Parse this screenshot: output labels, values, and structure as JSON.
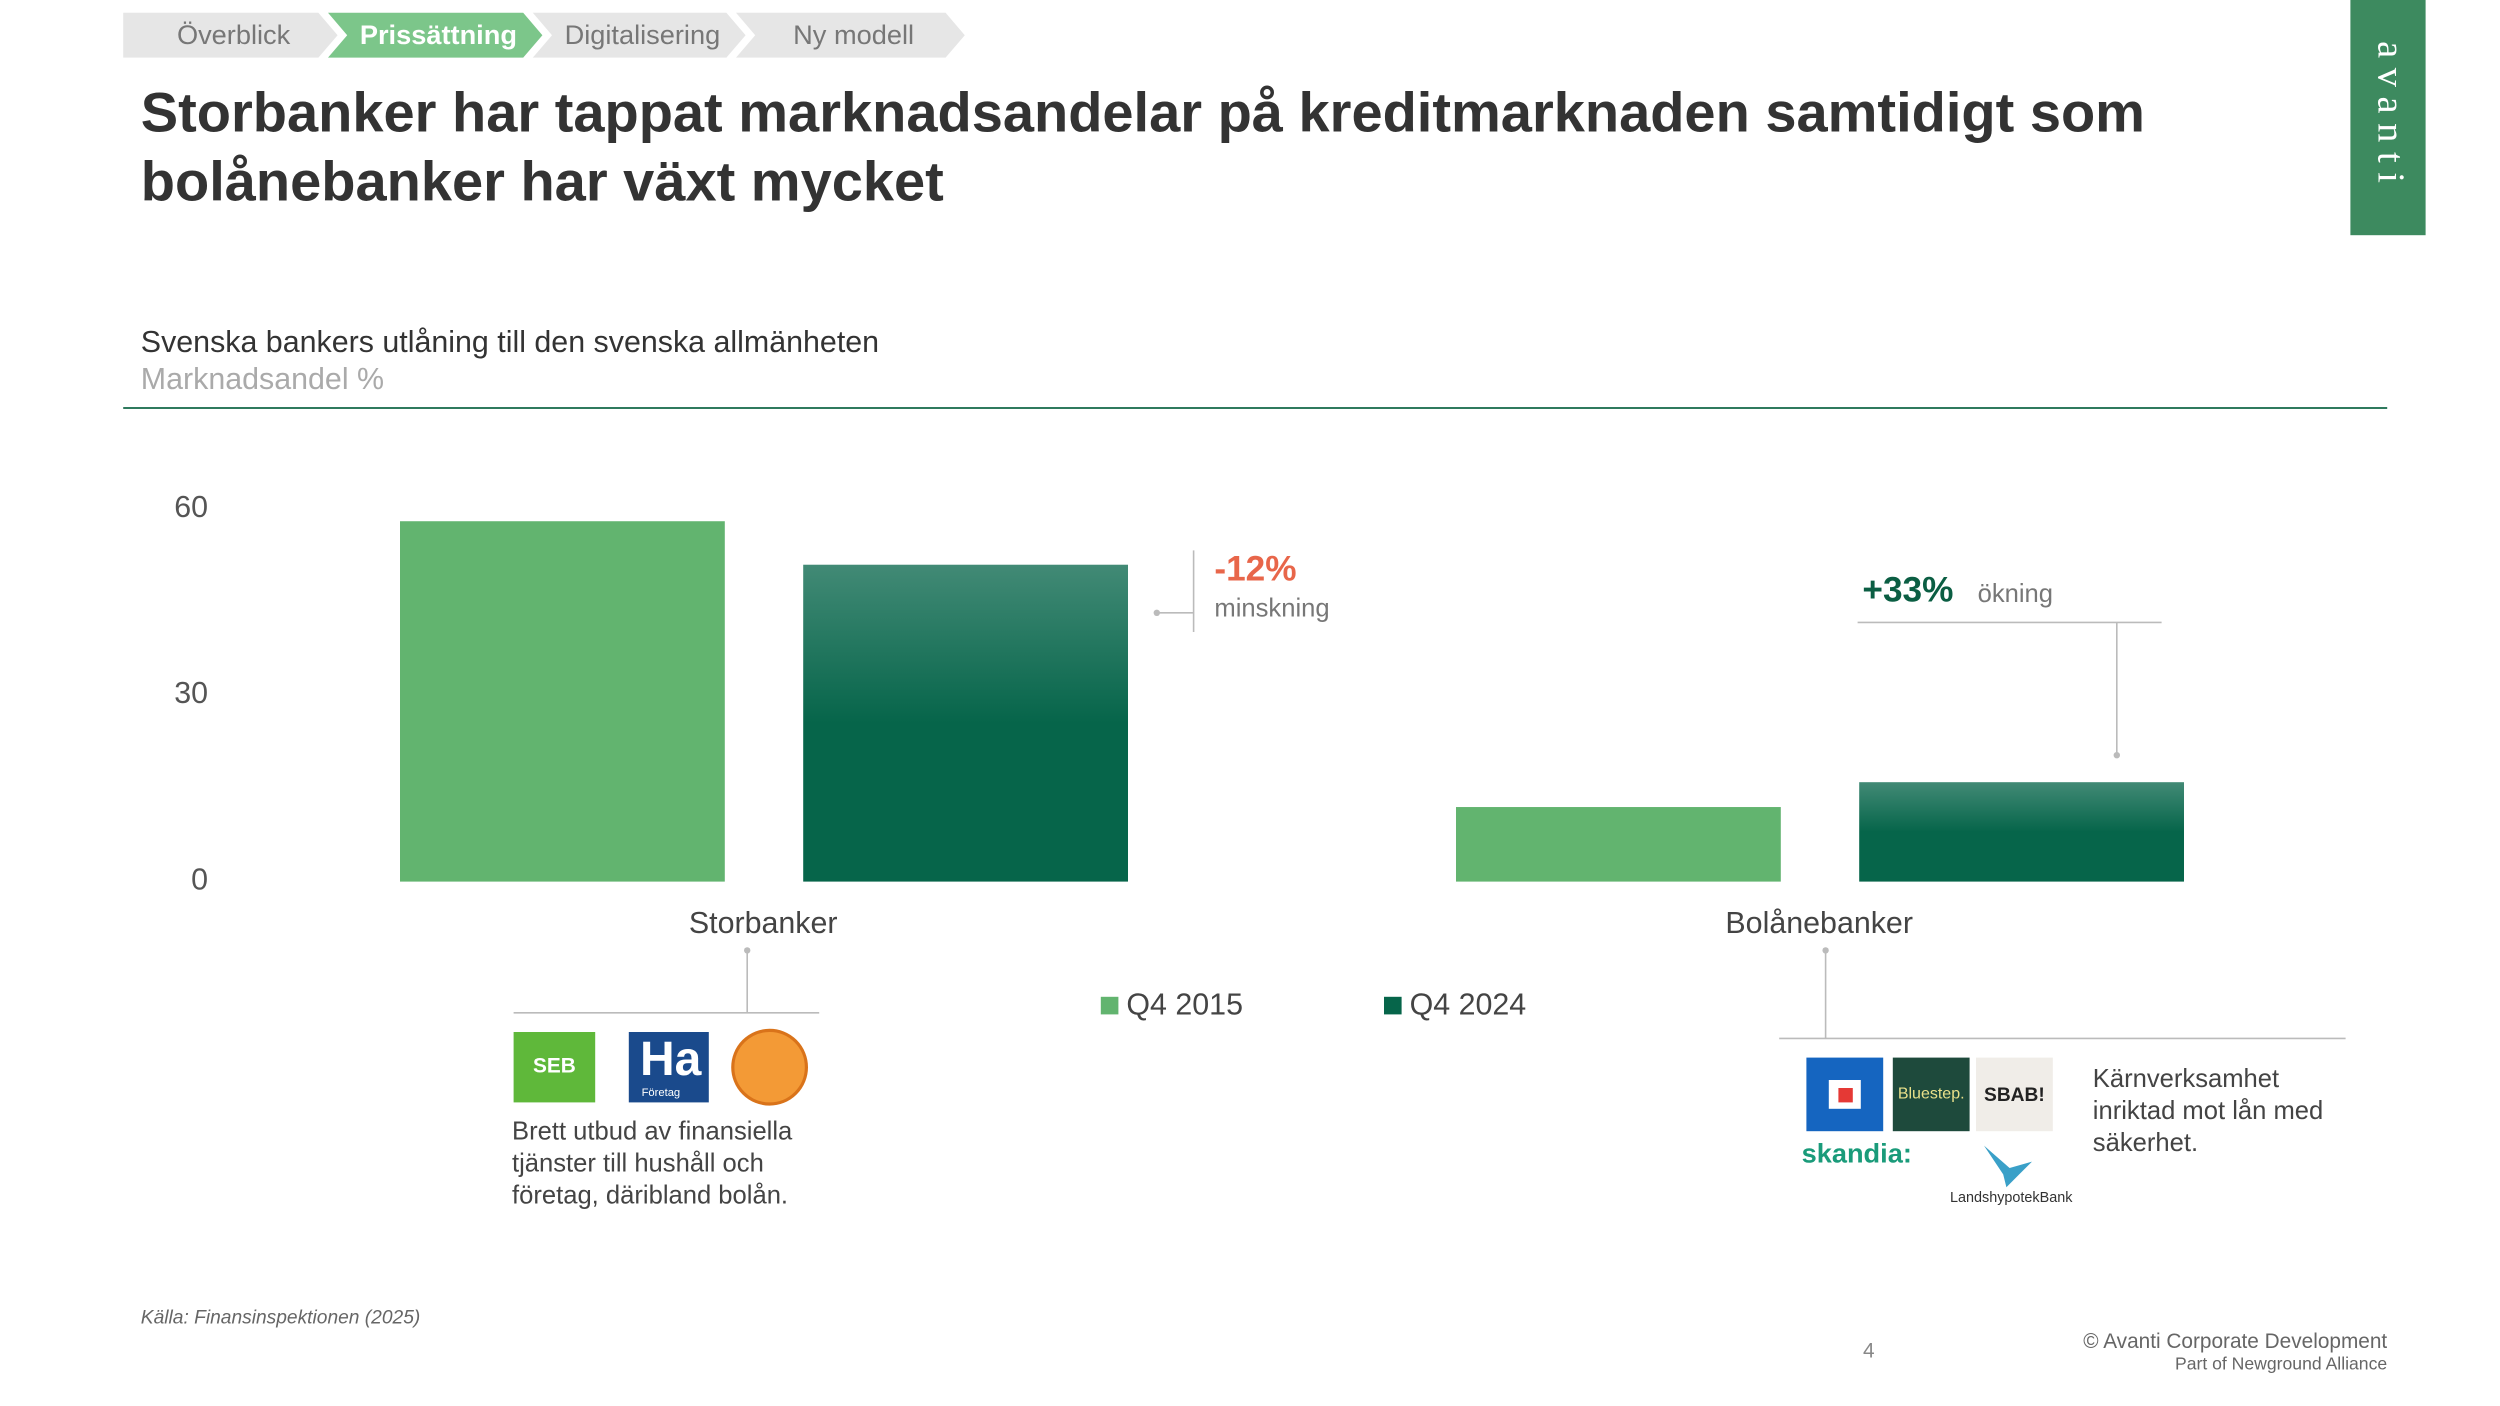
{
  "nav": [
    "Överblick",
    "Prissättning",
    "Digitalisering",
    "Ny modell"
  ],
  "nav_active": 1,
  "brand": "avanti",
  "title_lines": [
    "Storbanker har tappat marknadsandelar på kreditmarknaden samtidigt som",
    "bolånebanker har växt mycket"
  ],
  "chart_data": {
    "type": "bar",
    "title": "Svenska bankers utlåning till den svenska allmänheten",
    "subtitle": "Marknadsandel %",
    "categories": [
      "Storbanker",
      "Bolånebanker"
    ],
    "series": [
      {
        "name": "Q4 2015",
        "color": "#62b46f",
        "values": [
          58,
          12
        ]
      },
      {
        "name": "Q4 2024",
        "color": "#06654a",
        "values": [
          51,
          16
        ]
      }
    ],
    "ylim": [
      0,
      60
    ],
    "yticks": [
      0,
      30,
      60
    ],
    "grid": false,
    "annotations": [
      {
        "text": "-12%",
        "note": "minskning",
        "color": "#e8664a"
      },
      {
        "text": "+33%",
        "note": "ökning",
        "color": "#0b5e43"
      }
    ]
  },
  "groups": [
    {
      "logos": [
        "SEB",
        "Ha",
        "Företag"
      ],
      "lines": [
        "Brett utbud av finansiella",
        "tjänster till hushåll och",
        "företag, däribland bolån."
      ]
    },
    {
      "logos": [
        "Bluestep.",
        "SBAB!",
        "skandia:",
        "LandshypotekBank"
      ],
      "lines": [
        "Kärnverksamhet",
        "inriktad mot lån med",
        "säkerhet."
      ]
    }
  ],
  "source": "Källa: Finansinspektionen (2025)",
  "page": 4,
  "footer": [
    "© Avanti Corporate Development",
    "Part of Newground Alliance"
  ]
}
